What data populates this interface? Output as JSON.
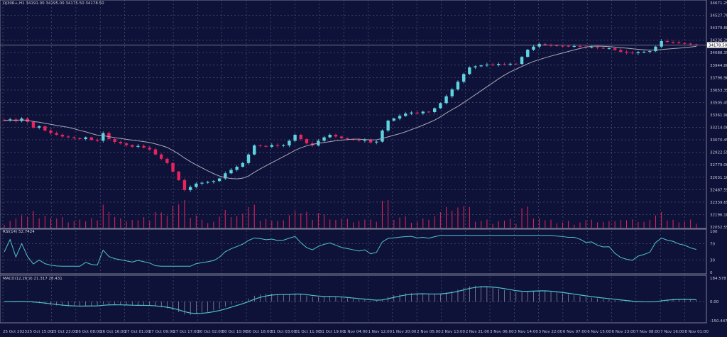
{
  "header": {
    "symbol": "DJ30R+,H1",
    "open": "34191.00",
    "high": "34195.00",
    "low": "34175.50",
    "close": "34178.50"
  },
  "price_axis": {
    "max": 34671.25,
    "min": 32052.55,
    "labels": [
      "34671.25",
      "34527.70",
      "34379.80",
      "34236.25",
      "34088.35",
      "33944.80",
      "33796.90",
      "33653.35",
      "33505.45",
      "33361.90",
      "33214.00",
      "33070.45",
      "32922.55",
      "32779.00",
      "32631.10",
      "32487.55",
      "32339.65",
      "32196.10",
      "32052.55"
    ],
    "current_price": "34178.50"
  },
  "rsi": {
    "title": "RSI(14) 52.7424",
    "levels": [
      "100",
      "70",
      "30",
      "0"
    ]
  },
  "macd": {
    "title": "MACD(12,26,9) 21.317 28.431",
    "labels": [
      "184.578",
      "0.00",
      "-150.447"
    ]
  },
  "time_axis": [
    "25 Oct 2023",
    "25 Oct 15:00",
    "25 Oct 23:00",
    "26 Oct 08:00",
    "26 Oct 16:00",
    "27 Oct 01:00",
    "27 Oct 09:00",
    "27 Oct 17:00",
    "30 Oct 02:00",
    "30 Oct 10:00",
    "30 Oct 18:00",
    "31 Oct 03:00",
    "31 Oct 11:00",
    "31 Oct 19:00",
    "1 Nov 04:00",
    "1 Nov 12:00",
    "1 Nov 20:00",
    "2 Nov 05:00",
    "2 Nov 13:00",
    "2 Nov 21:00",
    "3 Nov 06:00",
    "3 Nov 14:00",
    "3 Nov 22:00",
    "6 Nov 07:00",
    "6 Nov 15:00",
    "6 Nov 23:00",
    "7 Nov 08:00",
    "7 Nov 16:00",
    "8 Nov 01:00"
  ],
  "colors": {
    "background": "#0f1238",
    "up": "#5fd3e0",
    "down": "#e8245f",
    "ma": "#a8a8b8",
    "grid": "#5a5d80",
    "rsi": "#4fc3cf",
    "macd": "#4fc3cf"
  },
  "closes": [
    33296,
    33310,
    33290,
    33320,
    33280,
    33213,
    33230,
    33180,
    33150,
    33130,
    33110,
    33100,
    33090,
    33080,
    33100,
    33070,
    33060,
    33150,
    33080,
    33047,
    33030,
    33010,
    32990,
    33000,
    32980,
    32960,
    32900,
    32850,
    32800,
    32700,
    32600,
    32484,
    32520,
    32560,
    32570,
    32580,
    32590,
    32620,
    32680,
    32720,
    32757,
    32800,
    32900,
    33006,
    33000,
    32990,
    33010,
    33000,
    33006,
    33060,
    33130,
    33080,
    33030,
    33006,
    33060,
    33100,
    33130,
    33110,
    33090,
    33080,
    33070,
    33060,
    33070,
    33040,
    33050,
    33180,
    33296,
    33320,
    33350,
    33378,
    33390,
    33380,
    33400,
    33395,
    33440,
    33500,
    33580,
    33660,
    33750,
    33840,
    33917,
    33930,
    33940,
    33950,
    33945,
    33958,
    33950,
    33960,
    33958,
    34040,
    34124,
    34160,
    34190,
    34180,
    34175,
    34170,
    34168,
    34165,
    34166,
    34160,
    34150,
    34155,
    34145,
    34140,
    34141,
    34120,
    34100,
    34090,
    34083,
    34095,
    34100,
    34107,
    34160,
    34224,
    34215,
    34210,
    34200,
    34195,
    34185,
    34178.5
  ]
}
